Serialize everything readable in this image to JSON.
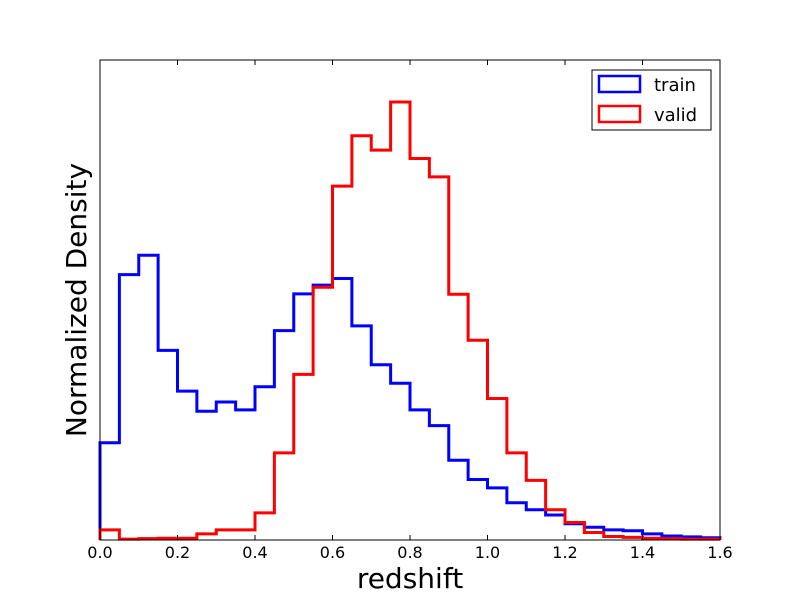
{
  "chart_data": {
    "type": "histogram",
    "xlabel": "redshift",
    "ylabel": "Normalized Density",
    "xlim": [
      0.0,
      1.6
    ],
    "ylim": [
      0,
      1.0
    ],
    "x_ticks": [
      "0.0",
      "0.2",
      "0.4",
      "0.6",
      "0.8",
      "1.0",
      "1.2",
      "1.4",
      "1.6"
    ],
    "y_ticks_shown": false,
    "grid": false,
    "legend_position": "top-right",
    "bin_edges": [
      0.0,
      0.05,
      0.1,
      0.15,
      0.2,
      0.25,
      0.3,
      0.35,
      0.4,
      0.45,
      0.5,
      0.55,
      0.6,
      0.65,
      0.7,
      0.75,
      0.8,
      0.85,
      0.9,
      0.95,
      1.0,
      1.05,
      1.1,
      1.15,
      1.2,
      1.25,
      1.3,
      1.35,
      1.4,
      1.45,
      1.5,
      1.55,
      1.6
    ],
    "series": [
      {
        "name": "train",
        "color": "#0000ff",
        "values": [
          0.222,
          0.606,
          0.65,
          0.433,
          0.34,
          0.294,
          0.315,
          0.297,
          0.35,
          0.478,
          0.562,
          0.582,
          0.597,
          0.489,
          0.4,
          0.358,
          0.297,
          0.261,
          0.182,
          0.138,
          0.119,
          0.085,
          0.069,
          0.057,
          0.037,
          0.029,
          0.023,
          0.021,
          0.014,
          0.009,
          0.007,
          0.005
        ]
      },
      {
        "name": "valid",
        "color": "#ff0000",
        "values": [
          0.023,
          0.002,
          0.003,
          0.004,
          0.004,
          0.014,
          0.023,
          0.023,
          0.062,
          0.199,
          0.378,
          0.577,
          0.808,
          0.923,
          0.89,
          1.0,
          0.871,
          0.829,
          0.561,
          0.456,
          0.323,
          0.199,
          0.136,
          0.069,
          0.04,
          0.017,
          0.008,
          0.006,
          0.004,
          0.003,
          0.002,
          0.002
        ]
      }
    ]
  }
}
